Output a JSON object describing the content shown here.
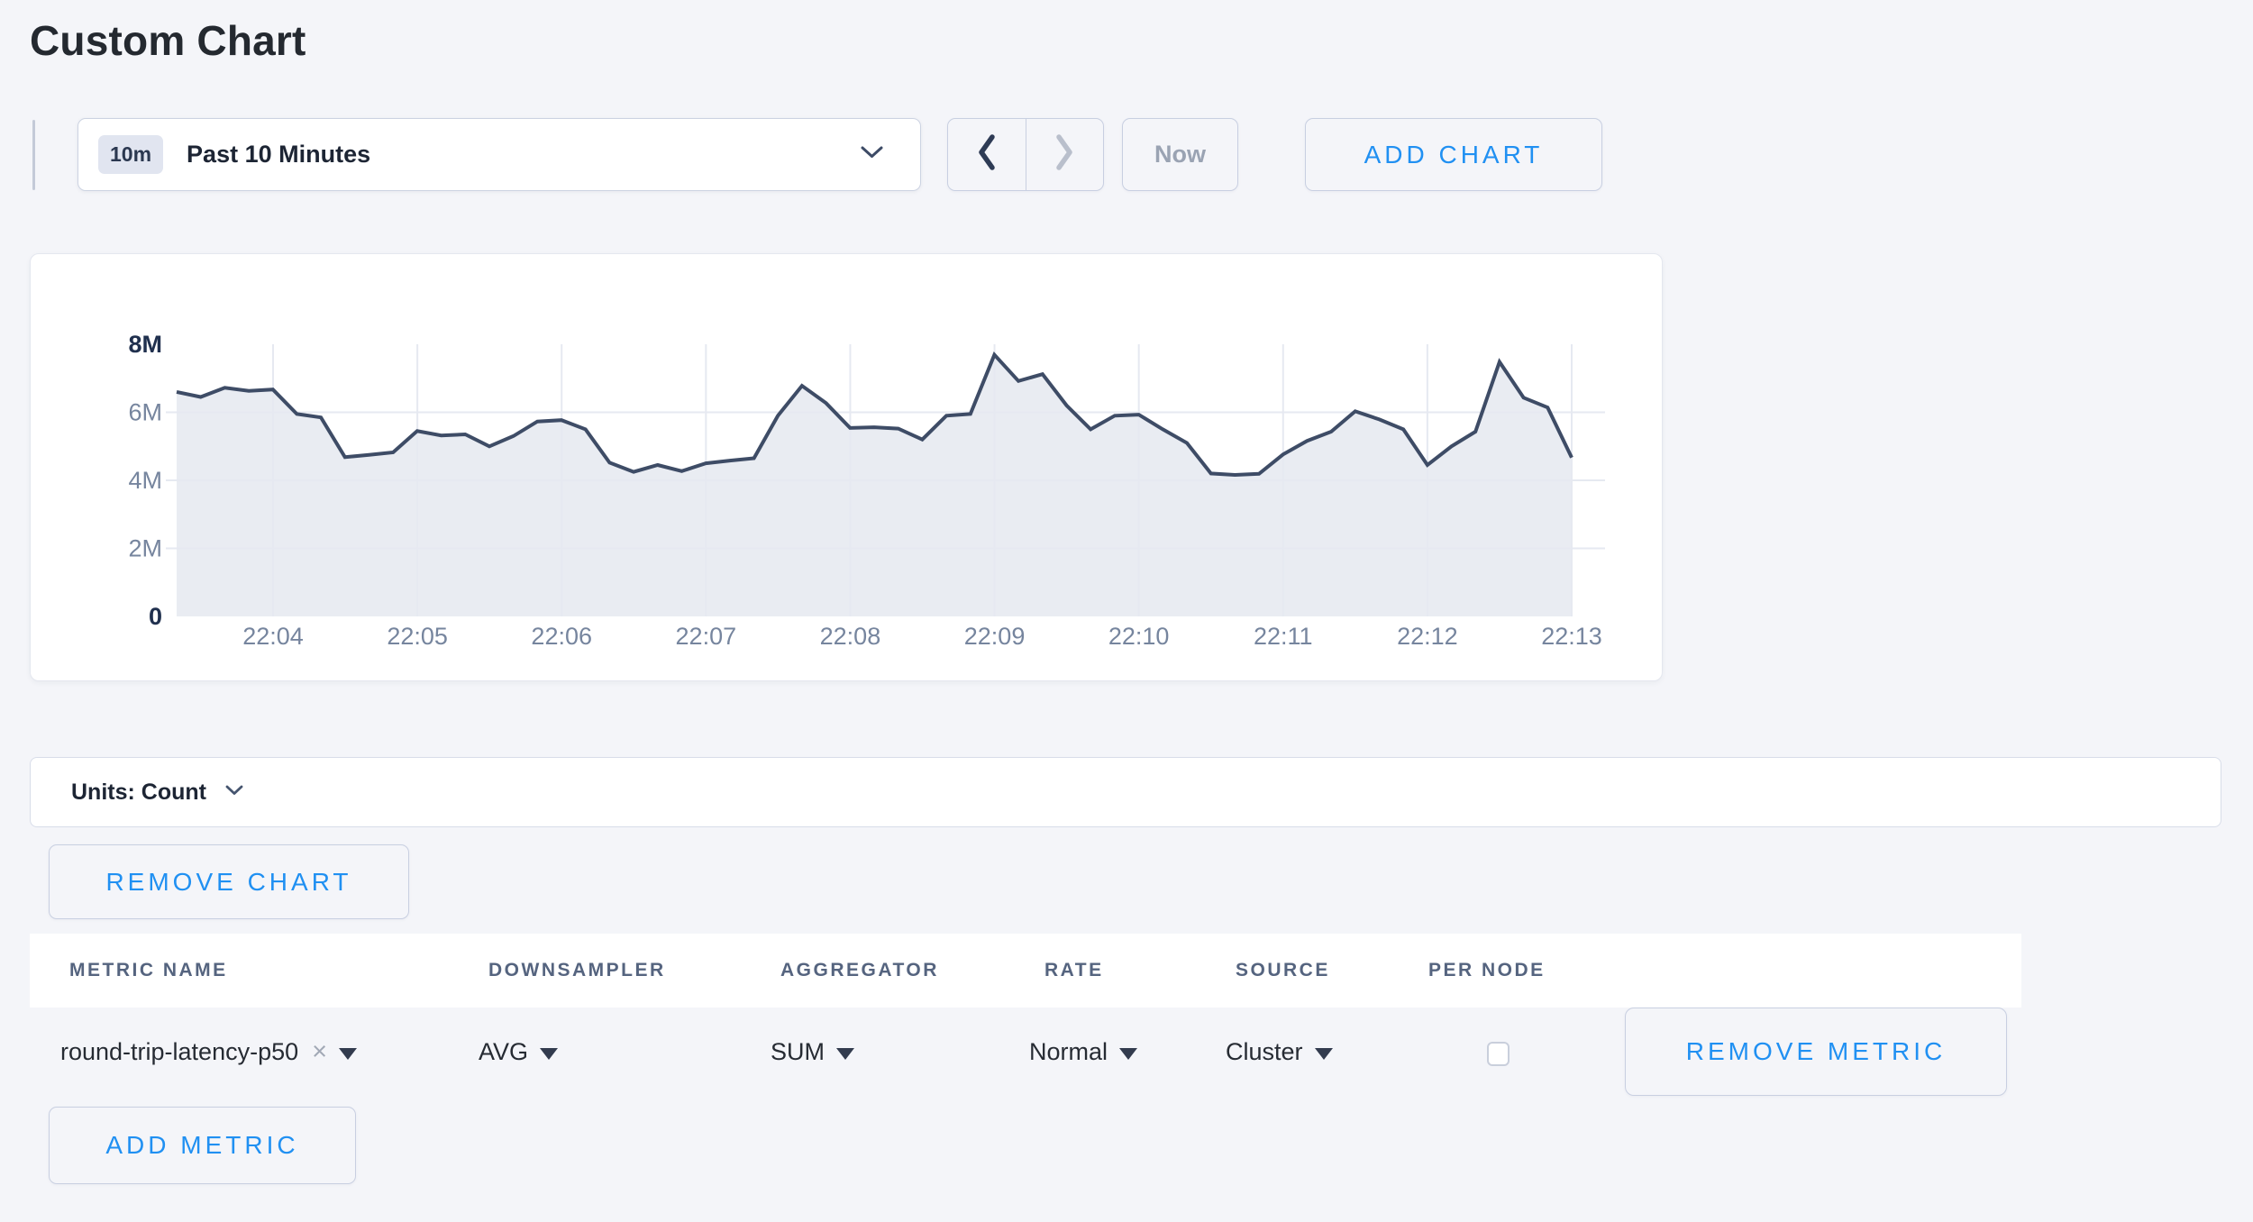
{
  "page": {
    "title": "Custom Chart",
    "background": "#f4f5f9"
  },
  "colors": {
    "accent_blue": "#2090f2",
    "line": "#3e4c66",
    "area_fill": "#e9ecf2",
    "gridline": "#e6e9f1",
    "axis_label_strong": "#20304e",
    "axis_label_muted": "#76859e",
    "border": "#c8cfe1"
  },
  "icons": {
    "close_metric": "×",
    "chevron_down": "v",
    "chevron_left": "<",
    "chevron_right": ">",
    "dropdown_triangle": "▼"
  },
  "toolbar": {
    "time_scale_badge": "10m",
    "time_scale_label": "Past 10 Minutes",
    "now_label": "Now",
    "add_chart_label": "ADD CHART"
  },
  "chart_data": {
    "type": "area",
    "title": "",
    "xlabel": "",
    "ylabel": "",
    "ylim": [
      0,
      8000000
    ],
    "grid": true,
    "legend": false,
    "x_start": "22:03:20",
    "x_step_seconds": 10,
    "x_tick_labels": [
      "22:04",
      "22:05",
      "22:06",
      "22:07",
      "22:08",
      "22:09",
      "22:10",
      "22:11",
      "22:12",
      "22:13"
    ],
    "y_tick_labels": [
      "0",
      "2M",
      "4M",
      "6M",
      "8M"
    ],
    "y_tick_values": [
      0,
      2000000,
      4000000,
      6000000,
      8000000
    ],
    "series": [
      {
        "name": "round-trip-latency-p50",
        "values_millions": [
          6.6,
          6.45,
          6.72,
          6.63,
          6.67,
          5.95,
          5.85,
          4.68,
          4.75,
          4.82,
          5.45,
          5.32,
          5.35,
          5.0,
          5.3,
          5.73,
          5.77,
          5.5,
          4.52,
          4.25,
          4.45,
          4.27,
          4.5,
          4.58,
          4.65,
          5.9,
          6.78,
          6.27,
          5.54,
          5.56,
          5.52,
          5.2,
          5.9,
          5.95,
          7.69,
          6.92,
          7.12,
          6.2,
          5.5,
          5.9,
          5.93,
          5.5,
          5.1,
          4.2,
          4.16,
          4.19,
          4.76,
          5.16,
          5.43,
          6.03,
          5.79,
          5.5,
          4.45,
          5.0,
          5.43,
          7.48,
          6.43,
          6.14,
          4.67
        ]
      }
    ]
  },
  "units_bar": {
    "label": "Units: Count"
  },
  "chart_section": {
    "remove_chart_label": "REMOVE CHART"
  },
  "metrics_table": {
    "columns": [
      "METRIC NAME",
      "DOWNSAMPLER",
      "AGGREGATOR",
      "RATE",
      "SOURCE",
      "PER NODE"
    ],
    "rows": [
      {
        "metric_name": "round-trip-latency-p50",
        "downsampler": "AVG",
        "aggregator": "SUM",
        "rate": "Normal",
        "source": "Cluster",
        "per_node_checked": false,
        "remove_label": "REMOVE METRIC"
      }
    ],
    "add_metric_label": "ADD METRIC"
  }
}
